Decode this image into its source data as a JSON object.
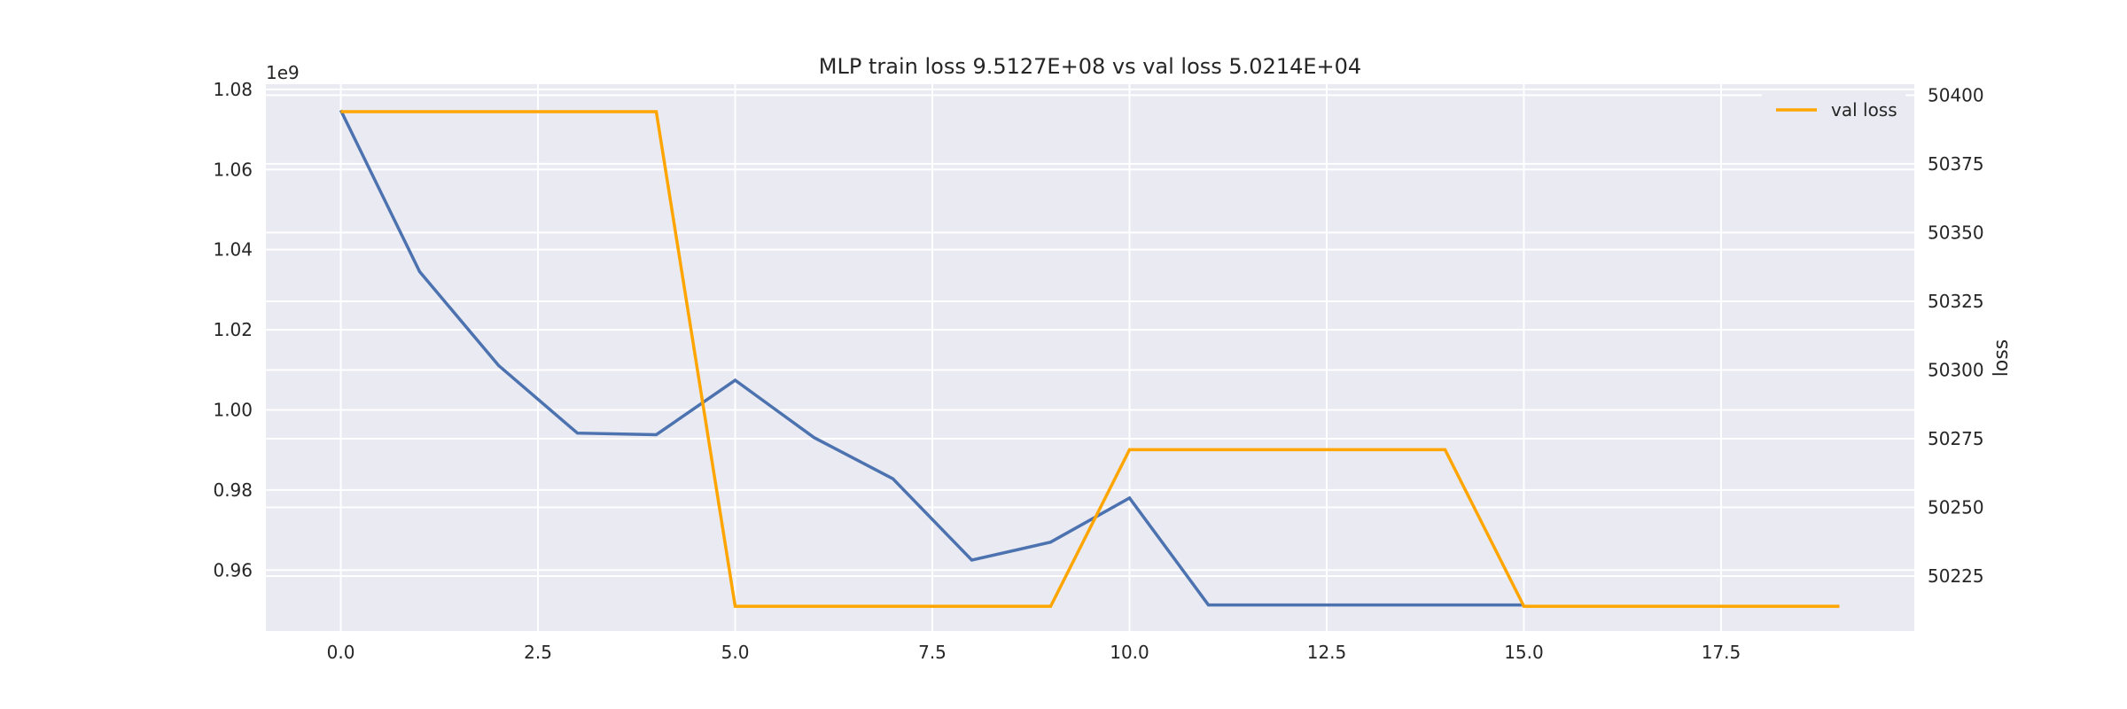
{
  "chart_data": {
    "type": "line",
    "title": "MLP train loss 9.5127E+08 vs val loss 5.0214E+04",
    "xlabel": "",
    "ylabel_left": "",
    "ylabel_right": "loss",
    "left_axis_multiplier": "1e9",
    "xlim": [
      -0.95,
      19.95
    ],
    "xticks": [
      0.0,
      2.5,
      5.0,
      7.5,
      10.0,
      12.5,
      15.0,
      17.5
    ],
    "xtick_labels": [
      "0.0",
      "2.5",
      "5.0",
      "7.5",
      "10.0",
      "12.5",
      "15.0",
      "17.5"
    ],
    "ylim_left": [
      0.9448,
      1.0813
    ],
    "yticks_left": [
      0.96,
      0.98,
      1.0,
      1.02,
      1.04,
      1.06,
      1.08
    ],
    "ytick_labels_left": [
      "0.96",
      "0.98",
      "1.00",
      "1.02",
      "1.04",
      "1.06",
      "1.08"
    ],
    "ylim_right": [
      50205,
      50404
    ],
    "yticks_right": [
      50225,
      50250,
      50275,
      50300,
      50325,
      50350,
      50375,
      50400
    ],
    "ytick_labels_right": [
      "50225",
      "50250",
      "50275",
      "50300",
      "50325",
      "50350",
      "50375",
      "50400"
    ],
    "grid": true,
    "legend_position": "top-right",
    "series": [
      {
        "axis": "left",
        "color": "#4c72b0",
        "x": [
          0,
          1,
          2,
          3,
          4,
          5,
          6,
          7,
          8,
          9,
          10,
          11,
          12,
          13,
          14,
          15
        ],
        "values": [
          1.0748,
          1.0345,
          1.0111,
          0.9942,
          0.9938,
          1.0074,
          0.9931,
          0.9828,
          0.9625,
          0.967,
          0.978,
          0.9513,
          0.9513,
          0.9513,
          0.9513,
          0.9513
        ]
      },
      {
        "name": "val loss",
        "axis": "right",
        "color": "#ffa500",
        "x": [
          0,
          1,
          2,
          3,
          4,
          5,
          6,
          7,
          8,
          9,
          10,
          11,
          12,
          13,
          14,
          15,
          16,
          17,
          18,
          19
        ],
        "values": [
          50394,
          50394,
          50394,
          50394,
          50394,
          50214,
          50214,
          50214,
          50214,
          50214,
          50271,
          50271,
          50271,
          50271,
          50271,
          50214,
          50214,
          50214,
          50214,
          50214
        ]
      }
    ]
  }
}
